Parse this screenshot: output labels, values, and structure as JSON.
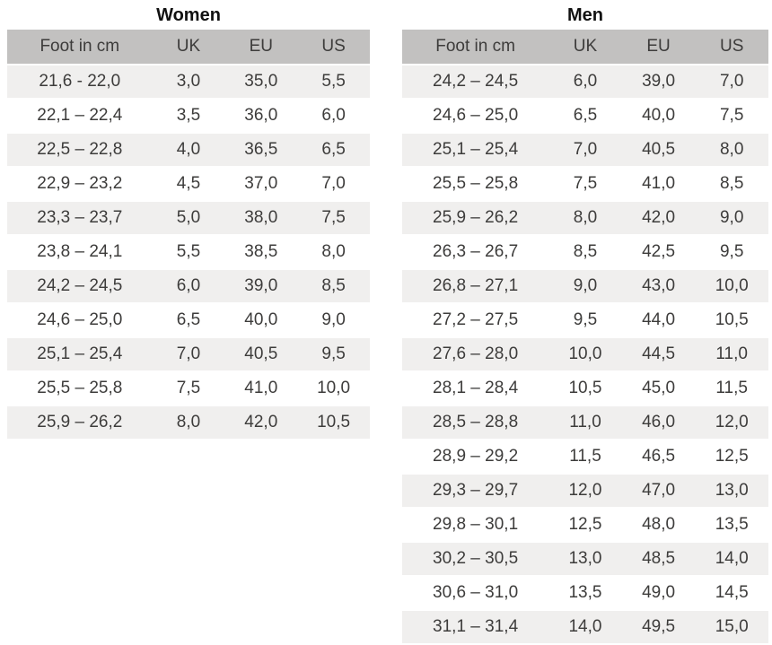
{
  "colors": {
    "header_bg": "#c2c1c0",
    "stripe_bg": "#f0efee",
    "text": "#3d3c3b",
    "title": "#111111",
    "page_bg": "#ffffff"
  },
  "tables": [
    {
      "id": "women",
      "title": "Women",
      "headers": [
        "Foot in cm",
        "UK",
        "EU",
        "US"
      ],
      "rows": [
        [
          "21,6 - 22,0",
          "3,0",
          "35,0",
          "5,5"
        ],
        [
          "22,1 – 22,4",
          "3,5",
          "36,0",
          "6,0"
        ],
        [
          "22,5 – 22,8",
          "4,0",
          "36,5",
          "6,5"
        ],
        [
          "22,9 – 23,2",
          "4,5",
          "37,0",
          "7,0"
        ],
        [
          "23,3 – 23,7",
          "5,0",
          "38,0",
          "7,5"
        ],
        [
          "23,8 – 24,1",
          "5,5",
          "38,5",
          "8,0"
        ],
        [
          "24,2 – 24,5",
          "6,0",
          "39,0",
          "8,5"
        ],
        [
          "24,6 – 25,0",
          "6,5",
          "40,0",
          "9,0"
        ],
        [
          "25,1 – 25,4",
          "7,0",
          "40,5",
          "9,5"
        ],
        [
          "25,5 – 25,8",
          "7,5",
          "41,0",
          "10,0"
        ],
        [
          "25,9 – 26,2",
          "8,0",
          "42,0",
          "10,5"
        ]
      ]
    },
    {
      "id": "men",
      "title": "Men",
      "headers": [
        "Foot in cm",
        "UK",
        "EU",
        "US"
      ],
      "rows": [
        [
          "24,2 – 24,5",
          "6,0",
          "39,0",
          "7,0"
        ],
        [
          "24,6 – 25,0",
          "6,5",
          "40,0",
          "7,5"
        ],
        [
          "25,1 – 25,4",
          "7,0",
          "40,5",
          "8,0"
        ],
        [
          "25,5 – 25,8",
          "7,5",
          "41,0",
          "8,5"
        ],
        [
          "25,9 – 26,2",
          "8,0",
          "42,0",
          "9,0"
        ],
        [
          "26,3 – 26,7",
          "8,5",
          "42,5",
          "9,5"
        ],
        [
          "26,8 – 27,1",
          "9,0",
          "43,0",
          "10,0"
        ],
        [
          "27,2 – 27,5",
          "9,5",
          "44,0",
          "10,5"
        ],
        [
          "27,6 – 28,0",
          "10,0",
          "44,5",
          "11,0"
        ],
        [
          "28,1 – 28,4",
          "10,5",
          "45,0",
          "11,5"
        ],
        [
          "28,5 – 28,8",
          "11,0",
          "46,0",
          "12,0"
        ],
        [
          "28,9 – 29,2",
          "11,5",
          "46,5",
          "12,5"
        ],
        [
          "29,3 – 29,7",
          "12,0",
          "47,0",
          "13,0"
        ],
        [
          "29,8 – 30,1",
          "12,5",
          "48,0",
          "13,5"
        ],
        [
          "30,2 – 30,5",
          "13,0",
          "48,5",
          "14,0"
        ],
        [
          "30,6 – 31,0",
          "13,5",
          "49,0",
          "14,5"
        ],
        [
          "31,1 – 31,4",
          "14,0",
          "49,5",
          "15,0"
        ]
      ]
    }
  ]
}
